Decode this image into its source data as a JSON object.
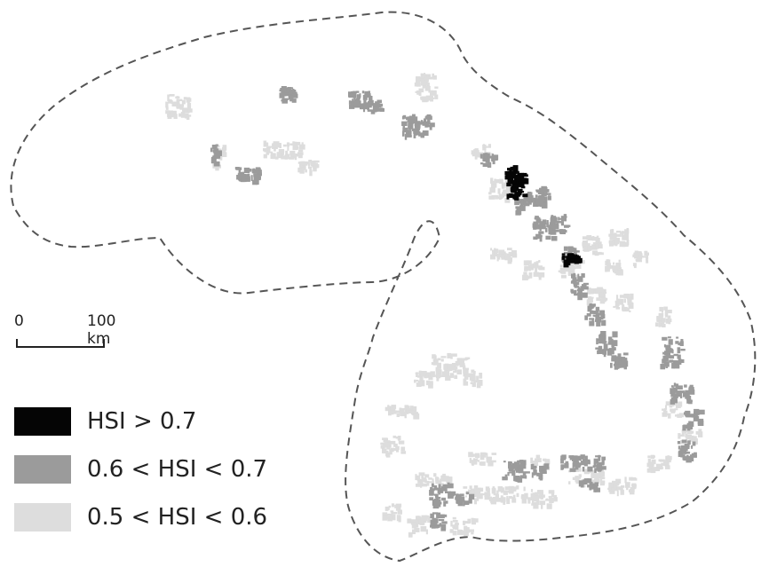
{
  "map": {
    "colors": {
      "boundary": "#555555",
      "high": "#050505",
      "mid": "#9b9b9b",
      "low": "#dddddd"
    }
  },
  "scale_bar": {
    "zero_label": "0",
    "distance_label": "100 km"
  },
  "legend": {
    "items": [
      {
        "label": "HSI > 0.7",
        "color": "#050505",
        "class": "high"
      },
      {
        "label": "0.6 < HSI < 0.7",
        "color": "#9b9b9b",
        "class": "mid"
      },
      {
        "label": "0.5 < HSI < 0.6",
        "color": "#dddddd",
        "class": "low"
      }
    ]
  }
}
